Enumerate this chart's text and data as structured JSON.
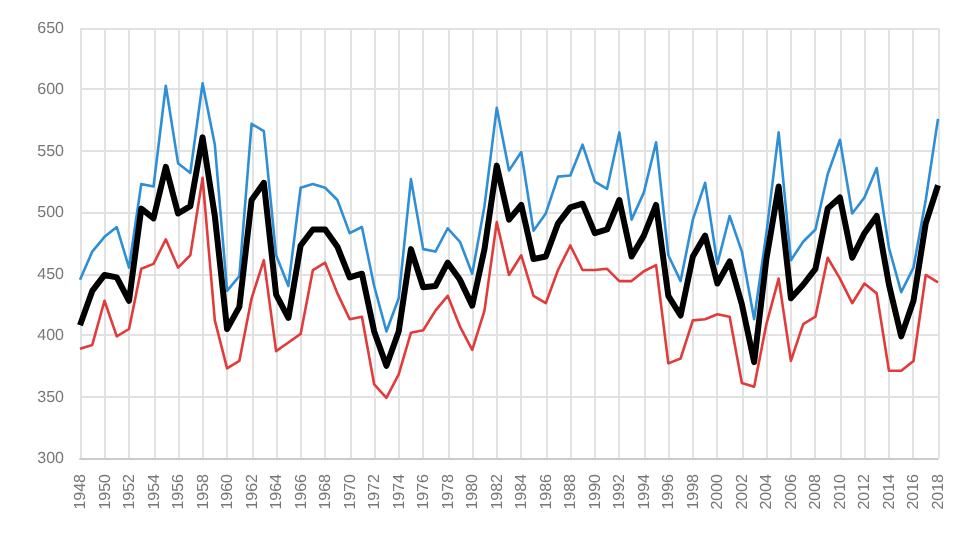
{
  "chart_data": {
    "type": "line",
    "categories": [
      "1948",
      null,
      "1950",
      null,
      "1952",
      null,
      "1954",
      null,
      "1956",
      null,
      "1958",
      null,
      "1960",
      null,
      "1962",
      null,
      "1964",
      null,
      "1966",
      null,
      "1968",
      null,
      "1970",
      null,
      "1972",
      null,
      "1974",
      null,
      "1976",
      null,
      "1978",
      null,
      "1980",
      null,
      "1982",
      null,
      "1984",
      null,
      "1986",
      null,
      "1988",
      null,
      "1990",
      null,
      "1992",
      null,
      "1994",
      null,
      "1996",
      null,
      "1998",
      null,
      "2000",
      null,
      "2002",
      null,
      "2004",
      null,
      "2006",
      null,
      "2008",
      null,
      "2010",
      null,
      "2012",
      null,
      "2014",
      null,
      "2016",
      null,
      "2018"
    ],
    "series": [
      {
        "color": "#2e8fd6",
        "values": [
          445,
          468,
          480,
          488,
          455,
          523,
          521,
          603,
          540,
          532,
          605,
          555,
          436,
          448,
          572,
          566,
          465,
          440,
          520,
          523,
          520,
          510,
          483,
          488,
          440,
          403,
          430,
          527,
          470,
          468,
          487,
          476,
          450,
          505,
          585,
          534,
          549,
          485,
          499,
          529,
          530,
          555,
          525,
          519,
          565,
          494,
          516,
          557,
          465,
          444,
          494,
          524,
          458,
          497,
          468,
          413,
          483,
          565,
          461,
          476,
          486,
          531,
          559,
          499,
          512,
          536,
          471,
          435,
          455,
          510,
          576
        ]
      },
      {
        "color": "#e03c3c",
        "values": [
          389,
          392,
          428,
          399,
          405,
          454,
          458,
          478,
          455,
          465,
          528,
          412,
          373,
          379,
          430,
          461,
          387,
          394,
          401,
          453,
          459,
          434,
          413,
          415,
          360,
          349,
          368,
          402,
          404,
          420,
          432,
          407,
          388,
          420,
          492,
          449,
          465,
          432,
          426,
          453,
          473,
          453,
          453,
          454,
          444,
          444,
          452,
          457,
          377,
          381,
          412,
          413,
          417,
          415,
          361,
          358,
          409,
          446,
          379,
          409,
          415,
          463,
          446,
          426,
          442,
          434,
          371,
          371,
          379,
          449,
          443
        ]
      },
      {
        "color": "#000000",
        "values": [
          408,
          436,
          449,
          447,
          428,
          503,
          495,
          537,
          499,
          505,
          561,
          497,
          405,
          423,
          510,
          524,
          433,
          414,
          473,
          486,
          486,
          472,
          447,
          450,
          403,
          375,
          403,
          470,
          439,
          440,
          459,
          445,
          424,
          470,
          538,
          494,
          506,
          462,
          464,
          491,
          504,
          507,
          483,
          486,
          510,
          464,
          481,
          506,
          432,
          416,
          464,
          481,
          442,
          460,
          425,
          378,
          462,
          521,
          430,
          441,
          454,
          503,
          512,
          463,
          483,
          497,
          441,
          399,
          428,
          491,
          522
        ]
      }
    ],
    "ylim": [
      300,
      650
    ],
    "yticks": [
      300,
      350,
      400,
      450,
      500,
      550,
      600,
      650
    ],
    "grid": true
  }
}
